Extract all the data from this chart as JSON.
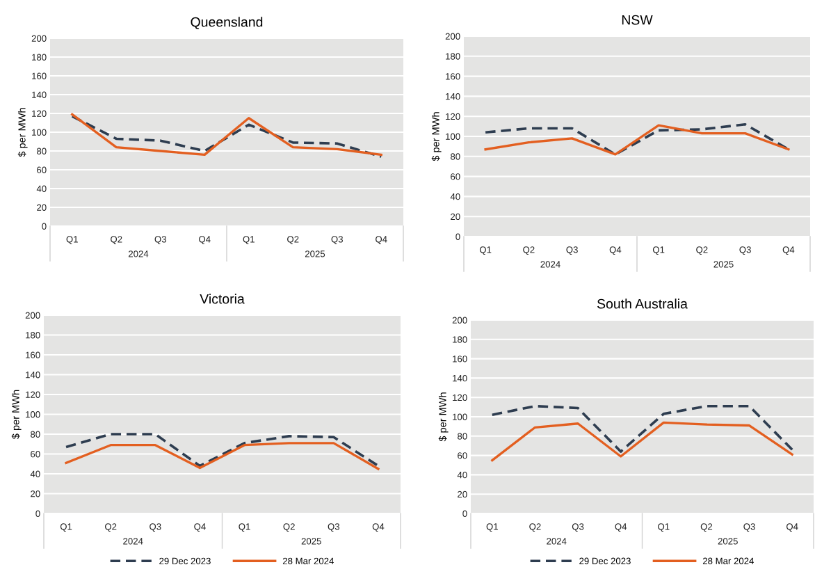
{
  "chart_data": [
    {
      "type": "line",
      "title": "Queensland",
      "ylabel": "$ per MWh",
      "categories": [
        "Q1",
        "Q2",
        "Q3",
        "Q4",
        "Q1",
        "Q2",
        "Q3",
        "Q4"
      ],
      "annotations": [
        "2024",
        "2025"
      ],
      "ylim": [
        0,
        200
      ],
      "yticks": [
        0,
        20,
        40,
        60,
        80,
        100,
        120,
        140,
        160,
        180,
        200
      ],
      "grid": "y",
      "legend": false,
      "series": [
        {
          "color": "#2e3d50",
          "line_style": "dashed",
          "values": [
            117,
            93,
            91,
            80,
            108,
            89,
            88,
            74
          ]
        },
        {
          "color": "#e35f20",
          "line_style": "solid",
          "values": [
            119,
            84,
            80,
            76,
            115,
            84,
            82,
            76
          ]
        }
      ]
    },
    {
      "type": "line",
      "title": "NSW",
      "ylabel": "$ per MWh",
      "categories": [
        "Q1",
        "Q2",
        "Q3",
        "Q4",
        "Q1",
        "Q2",
        "Q3",
        "Q4"
      ],
      "annotations": [
        "2024",
        "2025"
      ],
      "ylim": [
        0,
        200
      ],
      "yticks": [
        0,
        20,
        40,
        60,
        80,
        100,
        120,
        140,
        160,
        180,
        200
      ],
      "grid": "y",
      "legend": false,
      "series": [
        {
          "color": "#2e3d50",
          "line_style": "dashed",
          "values": [
            104,
            108,
            108,
            82,
            106,
            107,
            112,
            87
          ]
        },
        {
          "color": "#e35f20",
          "line_style": "solid",
          "values": [
            87,
            94,
            98,
            82,
            111,
            103,
            103,
            87
          ]
        }
      ]
    },
    {
      "type": "line",
      "title": "Victoria",
      "ylabel": "$ per MWh",
      "categories": [
        "Q1",
        "Q2",
        "Q3",
        "Q4",
        "Q1",
        "Q2",
        "Q3",
        "Q4"
      ],
      "annotations": [
        "2024",
        "2025"
      ],
      "ylim": [
        0,
        200
      ],
      "yticks": [
        0,
        20,
        40,
        60,
        80,
        100,
        120,
        140,
        160,
        180,
        200
      ],
      "grid": "y",
      "legend": "bottom",
      "series": [
        {
          "name": "29 Dec 2023",
          "color": "#2e3d50",
          "line_style": "dashed",
          "values": [
            67,
            80,
            80,
            48,
            71,
            78,
            77,
            48
          ]
        },
        {
          "name": "28 Mar 2024",
          "color": "#e35f20",
          "line_style": "solid",
          "values": [
            51,
            69,
            69,
            46,
            69,
            71,
            71,
            45
          ]
        }
      ]
    },
    {
      "type": "line",
      "title": "South Australia",
      "ylabel": "$ per MWh",
      "categories": [
        "Q1",
        "Q2",
        "Q3",
        "Q4",
        "Q1",
        "Q2",
        "Q3",
        "Q4"
      ],
      "annotations": [
        "2024",
        "2025"
      ],
      "ylim": [
        0,
        200
      ],
      "yticks": [
        0,
        20,
        40,
        60,
        80,
        100,
        120,
        140,
        160,
        180,
        200
      ],
      "grid": "y",
      "legend": "bottom",
      "series": [
        {
          "name": "29 Dec 2023",
          "color": "#2e3d50",
          "line_style": "dashed",
          "values": [
            102,
            111,
            109,
            64,
            103,
            111,
            111,
            66
          ]
        },
        {
          "name": "28 Mar 2024",
          "color": "#e35f20",
          "line_style": "solid",
          "values": [
            55,
            89,
            93,
            59,
            94,
            92,
            91,
            61
          ]
        }
      ]
    }
  ]
}
